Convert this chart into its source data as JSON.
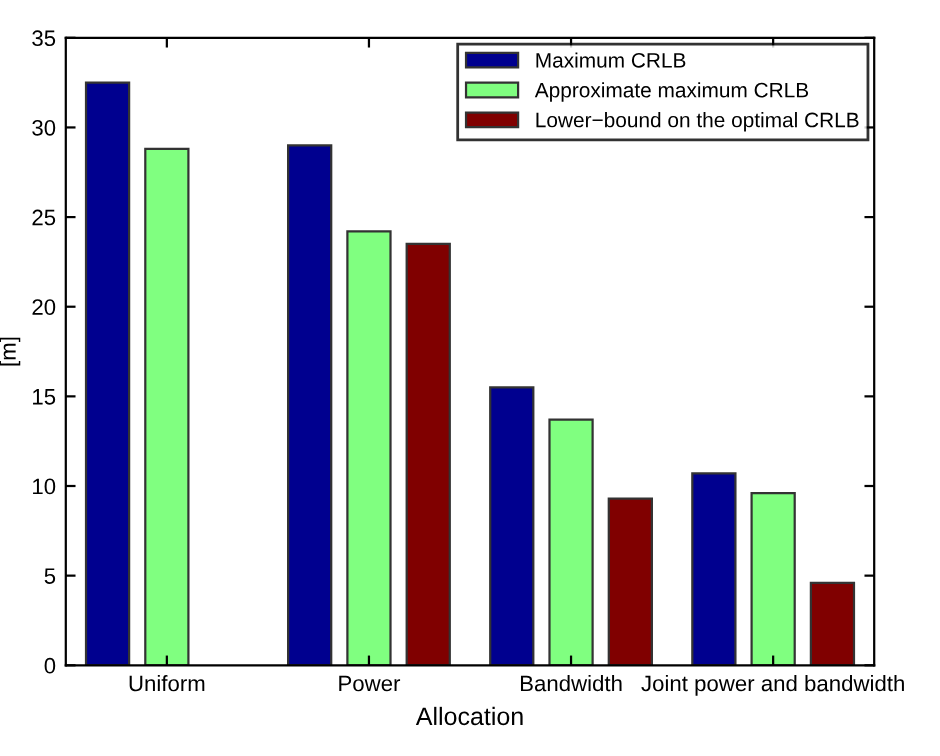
{
  "chart_data": {
    "type": "bar",
    "xlabel": "Allocation",
    "ylabel": "[m]",
    "categories": [
      "Uniform",
      "Power",
      "Bandwidth",
      "Joint power and bandwidth"
    ],
    "series": [
      {
        "name": "Maximum CRLB",
        "color": "#00008f",
        "values": [
          32.5,
          29.0,
          15.5,
          10.7
        ]
      },
      {
        "name": "Approximate maximum CRLB",
        "color": "#80ff80",
        "values": [
          28.8,
          24.2,
          13.7,
          9.6
        ]
      },
      {
        "name": "Lower−bound on the optimal CRLB",
        "color": "#800000",
        "values": [
          null,
          23.5,
          9.3,
          4.6
        ]
      }
    ],
    "ylim": [
      0,
      35
    ],
    "yticks": [
      0,
      5,
      10,
      15,
      20,
      25,
      30,
      35
    ],
    "grid": false,
    "legend": "top right"
  }
}
